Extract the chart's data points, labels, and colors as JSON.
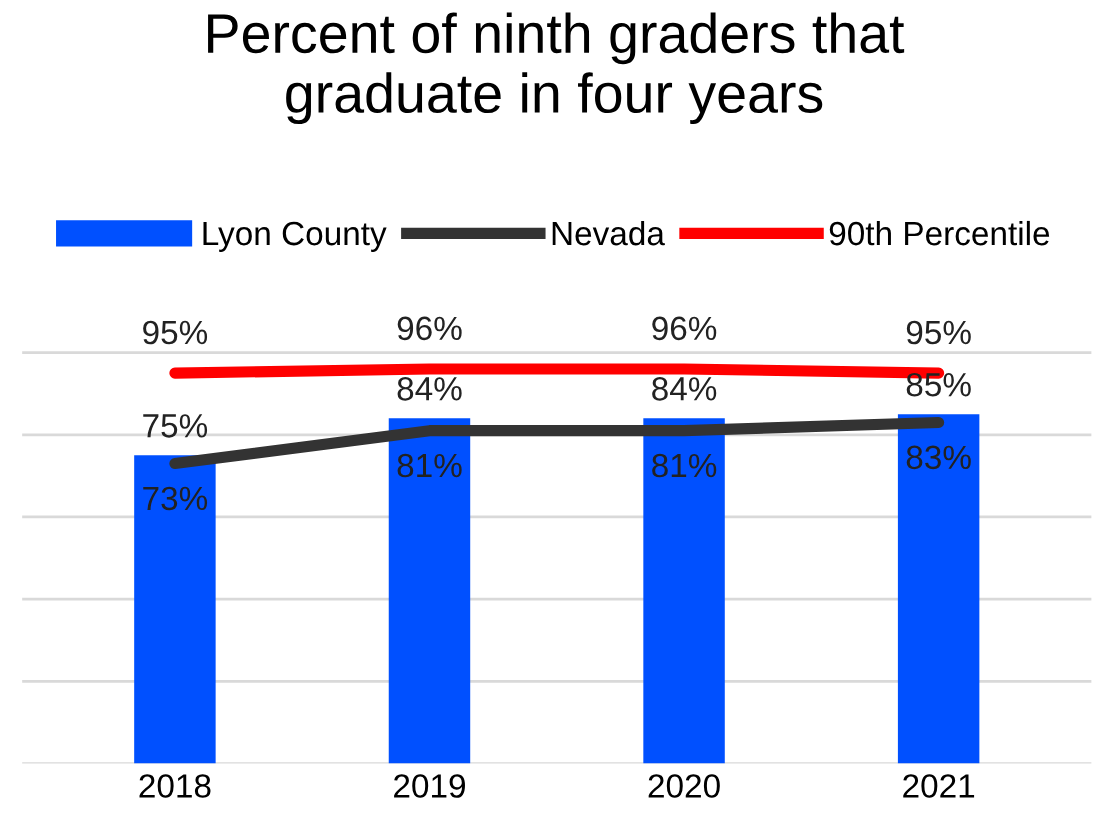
{
  "chart_data": {
    "type": "bar",
    "title": "Percent of ninth graders that\ngraduate in four years",
    "categories": [
      "2018",
      "2019",
      "2020",
      "2021"
    ],
    "series": [
      {
        "name": "Lyon County",
        "color": "#0050ff",
        "values": [
          75,
          84,
          84,
          85
        ],
        "value_labels": [
          "75%",
          "84%",
          "84%",
          "85%"
        ]
      },
      {
        "name": "Nevada",
        "type": "line",
        "color": "#333333",
        "values": [
          73,
          81,
          81,
          83
        ],
        "value_labels": [
          "73%",
          "81%",
          "81%",
          "83%"
        ]
      },
      {
        "name": "90th Percentile",
        "type": "line",
        "color": "#ff0000",
        "values": [
          95,
          96,
          96,
          95
        ],
        "value_labels": [
          "95%",
          "96%",
          "96%",
          "95%"
        ]
      }
    ],
    "grid": "y",
    "legend": "top",
    "tick_labels": "x"
  }
}
